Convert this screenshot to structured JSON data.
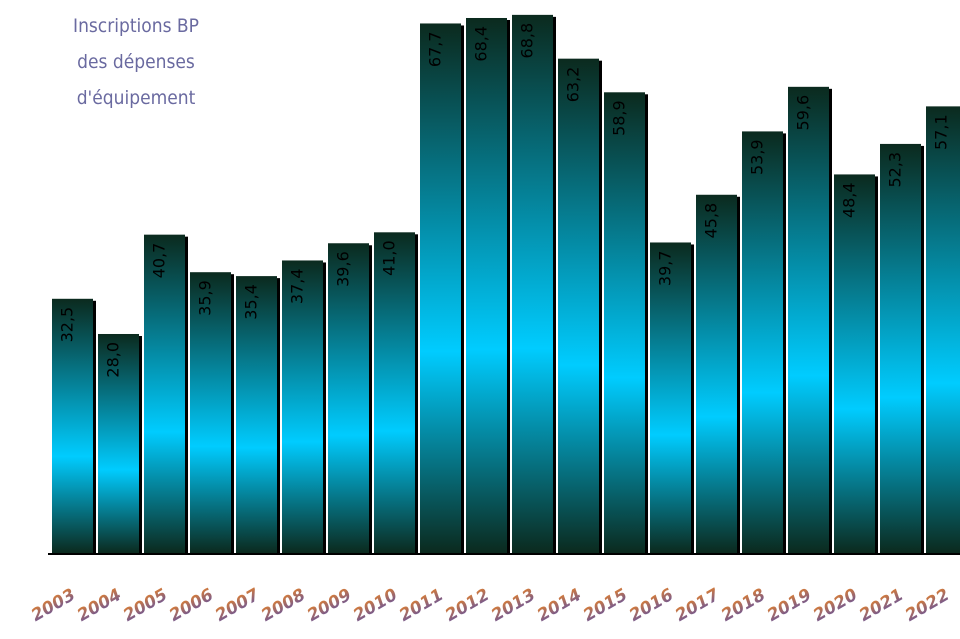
{
  "chart_data": {
    "type": "bar",
    "title": [
      "Inscriptions BP",
      "des dépenses",
      "d'équipement"
    ],
    "categories": [
      "2003",
      "2004",
      "2005",
      "2006",
      "2007",
      "2008",
      "2009",
      "2010",
      "2011",
      "2012",
      "2013",
      "2014",
      "2015",
      "2016",
      "2017",
      "2018",
      "2019",
      "2020",
      "2021",
      "2022"
    ],
    "values": [
      32.5,
      28.0,
      40.7,
      35.9,
      35.4,
      37.4,
      39.6,
      41.0,
      67.7,
      68.4,
      68.8,
      63.2,
      58.9,
      39.7,
      45.8,
      53.9,
      59.6,
      48.4,
      52.3,
      57.1
    ],
    "value_labels": [
      "32,5",
      "28,0",
      "40,7",
      "35,9",
      "35,4",
      "37,4",
      "39,6",
      "41,0",
      "67,7",
      "68,4",
      "68,8",
      "63,2",
      "58,9",
      "39,7",
      "45,8",
      "53,9",
      "59,6",
      "48,4",
      "52,3",
      "57,1"
    ],
    "ylim": [
      0,
      70.7
    ]
  }
}
